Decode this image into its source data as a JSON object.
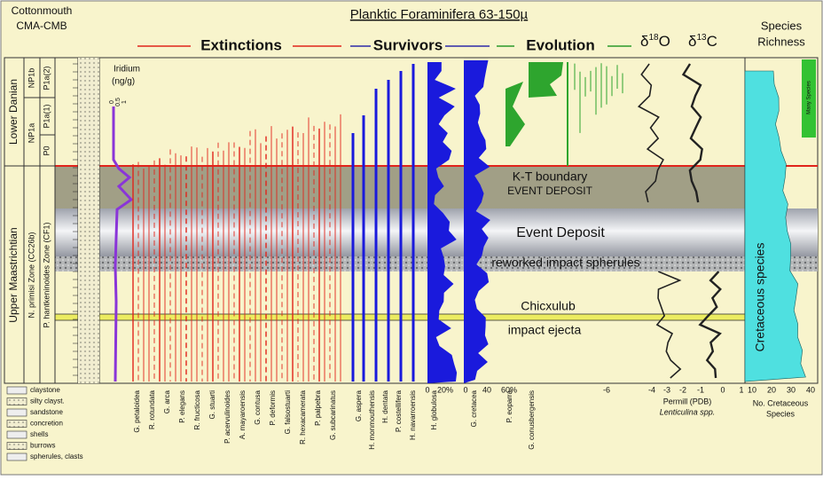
{
  "header": {
    "section": [
      "Cottonmouth",
      "CMA-CMB"
    ],
    "title": "Planktic Foraminifera 63-150µ",
    "groups": [
      "Extinctions",
      "Survivors",
      "Evolution"
    ],
    "isotopes": [
      {
        "symbol": "δ",
        "mass": "18",
        "element": "O"
      },
      {
        "symbol": "δ",
        "mass": "13",
        "element": "C"
      }
    ],
    "richness": [
      "Species",
      "Richness"
    ]
  },
  "stratigraphy": {
    "stages": [
      "Lower Danian",
      "Upper Maastrichtian"
    ],
    "nannofossil_zones": [
      "NP1b",
      "NP1a",
      "N. primisi Zone (CC26b)"
    ],
    "foram_zones": [
      "P1a(2)",
      "P1a(1)",
      "P0",
      "P. hantkeninoides Zone (CF1)"
    ],
    "iridium": [
      "Iridium",
      "(ng/g)"
    ],
    "iridium_scale": [
      "0",
      "0.5",
      "1"
    ]
  },
  "markers": [
    "K-T boundary",
    "EVENT DEPOSIT",
    "Event Deposit",
    "reworked impact spherules",
    "Chicxulub",
    "impact ejecta"
  ],
  "richness_labels": [
    "Cretaceous species",
    "Many Species"
  ],
  "lithology_legend": [
    "claystone",
    "silty clayst.",
    "sandstone",
    "concretion",
    "shells",
    "burrows",
    "spherules, clasts"
  ],
  "species": {
    "extinctions": [
      "G. petaloidea",
      "R. rotundata",
      "G. arca",
      "P. elegans",
      "R. fructicosa",
      "G. stuarti",
      "P. acervulinoides",
      "A. mayaroensis",
      "G. contusa",
      "P. deformis",
      "G. falsostuarti",
      "R. hexacamerata",
      "P. palpebra",
      "G. subcarinatus"
    ],
    "survivors": [
      "G. aspera",
      "H. monmouthensis",
      "H. dentata",
      "P. costellifera",
      "H. navarroensis",
      "H. globulosa",
      "G. cretacea"
    ],
    "evolution": [
      "P. eoparra",
      "G. conusbergensis"
    ]
  },
  "axes": {
    "survivor_scale": [
      "0",
      "20%",
      "0",
      "40",
      "60%"
    ],
    "evolution_scale": [
      "-6"
    ],
    "isotope_scale": [
      "-4",
      "-3",
      "-2",
      "-1",
      "0",
      "1"
    ],
    "isotope_unit": "Permill (PDB)",
    "isotope_sample": "Lenticulina spp.",
    "richness_scale": [
      "10",
      "20",
      "30",
      "40"
    ],
    "richness_unit": [
      "No. Cretaceous",
      "Species"
    ]
  }
}
